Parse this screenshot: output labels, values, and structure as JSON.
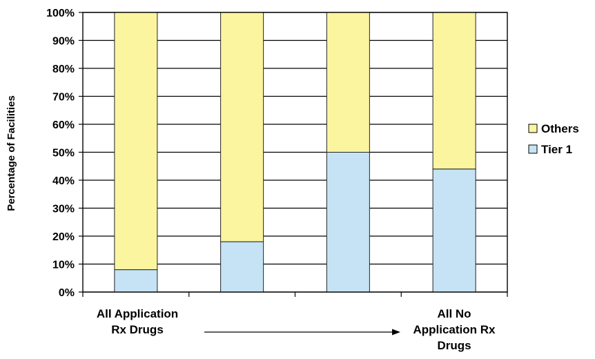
{
  "chart_data": {
    "type": "bar",
    "stacked": true,
    "percent": true,
    "categories": [
      "All Application Rx Drugs",
      "",
      "",
      "All No Application Rx Drugs"
    ],
    "category_label_lines": [
      [
        "All Application",
        "Rx Drugs"
      ],
      [],
      [],
      [
        "All No",
        "Application Rx",
        "Drugs"
      ]
    ],
    "series": [
      {
        "name": "Tier 1",
        "values": [
          8,
          18,
          50,
          44
        ],
        "color": "#c6e3f5"
      },
      {
        "name": "Others",
        "values": [
          92,
          82,
          50,
          56
        ],
        "color": "#fbf5a0"
      }
    ],
    "legend_order": [
      "Others",
      "Tier 1"
    ],
    "legend_position": "right",
    "ylabel": "Percentage of Facilities",
    "xlabel": "",
    "ylim": [
      0,
      100
    ],
    "yticks": [
      "0%",
      "10%",
      "20%",
      "30%",
      "40%",
      "50%",
      "60%",
      "70%",
      "80%",
      "90%",
      "100%"
    ],
    "grid": true,
    "arrow": {
      "from": "All Application Rx Drugs",
      "to": "All No Application Rx Drugs"
    }
  }
}
